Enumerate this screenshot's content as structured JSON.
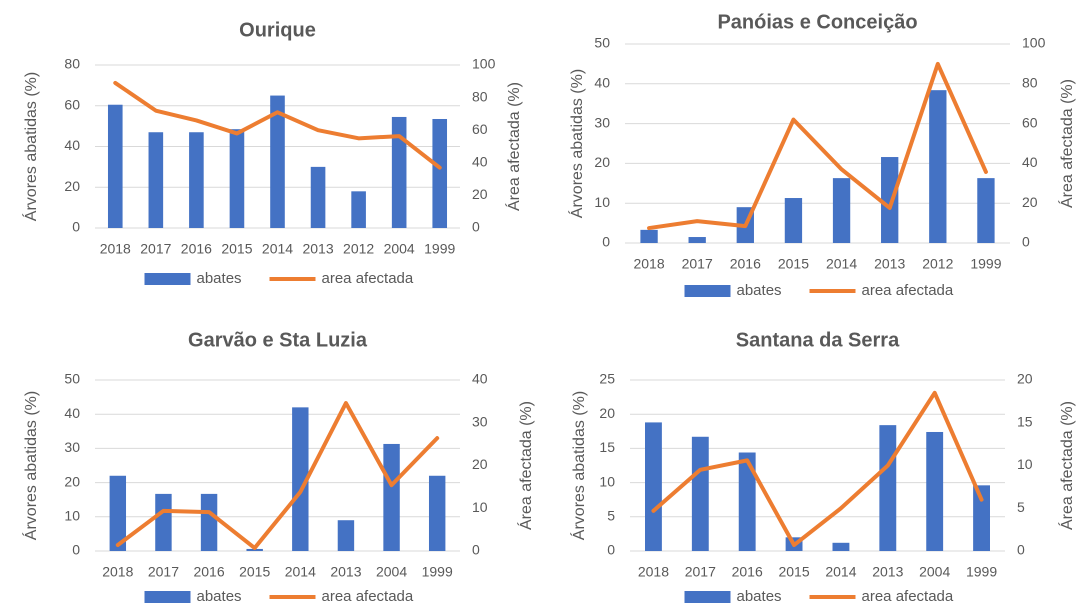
{
  "chart_data": [
    {
      "type": "bar_line",
      "title": "Ourique",
      "ylabel": "Árvores abatidas (%)",
      "y2label": "Área afectada (%)",
      "categories": [
        "2018",
        "2017",
        "2016",
        "2015",
        "2014",
        "2013",
        "2012",
        "2004",
        "1999"
      ],
      "series": [
        {
          "name": "abates",
          "type": "bar",
          "color": "#4472c4",
          "values": [
            60.5,
            47,
            47,
            48.5,
            65,
            30,
            18,
            54.5,
            53.5
          ]
        },
        {
          "name": "area afectada",
          "type": "line",
          "axis": "y2",
          "color": "#ed7d31",
          "values": [
            89,
            72,
            66,
            58,
            71,
            60,
            55,
            56.4,
            37
          ]
        }
      ],
      "ylim": [
        0,
        80
      ],
      "yticks": [
        0,
        20,
        40,
        60,
        80
      ],
      "y2lim": [
        0,
        100
      ],
      "y2ticks": [
        0,
        20,
        40,
        60,
        80,
        100
      ],
      "grid": true
    },
    {
      "type": "bar_line",
      "title": "Panóias e Conceição",
      "ylabel": "Árvores abatidas (%)",
      "y2label": "Área afectada (%)",
      "categories": [
        "2018",
        "2017",
        "2016",
        "2015",
        "2014",
        "2013",
        "2012",
        "1999"
      ],
      "series": [
        {
          "name": "abates",
          "type": "bar",
          "color": "#4472c4",
          "values": [
            3.3,
            1.5,
            9,
            11.3,
            16.3,
            21.6,
            38.4,
            16.3
          ]
        },
        {
          "name": "area afectada",
          "type": "line",
          "axis": "y2",
          "color": "#ed7d31",
          "values": [
            7.5,
            11,
            8.5,
            62,
            37,
            17.6,
            90,
            35.7
          ]
        }
      ],
      "ylim": [
        0,
        50
      ],
      "yticks": [
        0,
        10,
        20,
        30,
        40,
        50
      ],
      "y2lim": [
        0,
        100
      ],
      "y2ticks": [
        0,
        20,
        40,
        60,
        80,
        100
      ],
      "grid": true
    },
    {
      "type": "bar_line",
      "title": "Garvão e Sta Luzia",
      "ylabel": "Árvores abatidas (%)",
      "y2label": "Área afectada (%)",
      "categories": [
        "2018",
        "2017",
        "2016",
        "2015",
        "2014",
        "2013",
        "2004",
        "1999"
      ],
      "series": [
        {
          "name": "abates",
          "type": "bar",
          "color": "#4472c4",
          "values": [
            22,
            16.7,
            16.7,
            0.6,
            42,
            9,
            31.3,
            22
          ]
        },
        {
          "name": "area afectada",
          "type": "line",
          "axis": "y2",
          "color": "#ed7d31",
          "values": [
            1.4,
            9.4,
            9.1,
            0.7,
            13.8,
            34.6,
            15.4,
            26.4
          ]
        }
      ],
      "ylim": [
        0,
        50
      ],
      "yticks": [
        0,
        10,
        20,
        30,
        40,
        50
      ],
      "y2lim": [
        0,
        40
      ],
      "y2ticks": [
        0,
        10,
        20,
        30,
        40
      ],
      "grid": true
    },
    {
      "type": "bar_line",
      "title": "Santana da Serra",
      "ylabel": "Árvores abatidas (%)",
      "y2label": "Área afectada (%)",
      "categories": [
        "2018",
        "2017",
        "2016",
        "2015",
        "2014",
        "2013",
        "2004",
        "1999"
      ],
      "series": [
        {
          "name": "abates",
          "type": "bar",
          "color": "#4472c4",
          "values": [
            18.8,
            16.7,
            14.4,
            2.0,
            1.2,
            18.4,
            17.4,
            9.6
          ]
        },
        {
          "name": "area afectada",
          "type": "line",
          "axis": "y2",
          "color": "#ed7d31",
          "values": [
            4.7,
            9.5,
            10.6,
            0.7,
            5,
            10,
            18.5,
            6
          ]
        }
      ],
      "ylim": [
        0,
        25
      ],
      "yticks": [
        0,
        5,
        10,
        15,
        20,
        25
      ],
      "y2lim": [
        0,
        20
      ],
      "y2ticks": [
        0,
        5,
        10,
        15,
        20
      ],
      "grid": true
    }
  ]
}
